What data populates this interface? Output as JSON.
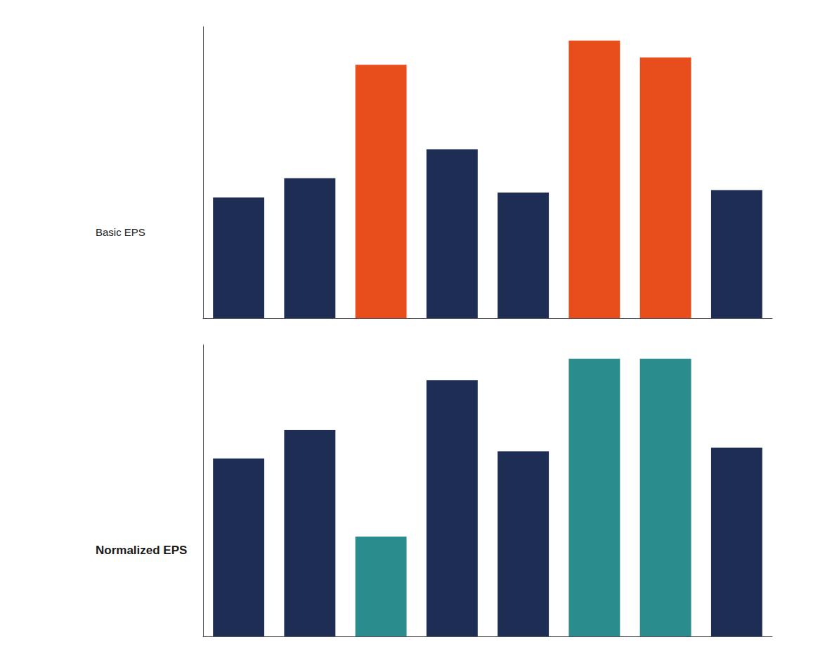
{
  "chart_data": [
    {
      "type": "bar",
      "title": "Basic EPS",
      "categories": [
        null,
        null,
        null,
        null,
        null,
        null,
        null,
        null
      ],
      "values": [
        5.0,
        5.8,
        10.5,
        7.0,
        5.2,
        11.5,
        10.8,
        5.3
      ],
      "colors": [
        "#1e2d54",
        "#1e2d54",
        "#e84e1b",
        "#1e2d54",
        "#1e2d54",
        "#e84e1b",
        "#e84e1b",
        "#1e2d54"
      ],
      "ylim": [
        0,
        12.075
      ],
      "grid": false,
      "tick_labels": false
    },
    {
      "type": "bar",
      "title": "Normalized EPS",
      "categories": [
        null,
        null,
        null,
        null,
        null,
        null,
        null,
        null
      ],
      "values": [
        5.0,
        5.8,
        2.8,
        7.2,
        5.2,
        7.8,
        7.8,
        5.3
      ],
      "colors": [
        "#1e2d54",
        "#1e2d54",
        "#2a8c8c",
        "#1e2d54",
        "#1e2d54",
        "#2a8c8c",
        "#2a8c8c",
        "#1e2d54"
      ],
      "ylim": [
        0,
        8.19
      ],
      "grid": false,
      "tick_labels": false
    }
  ]
}
